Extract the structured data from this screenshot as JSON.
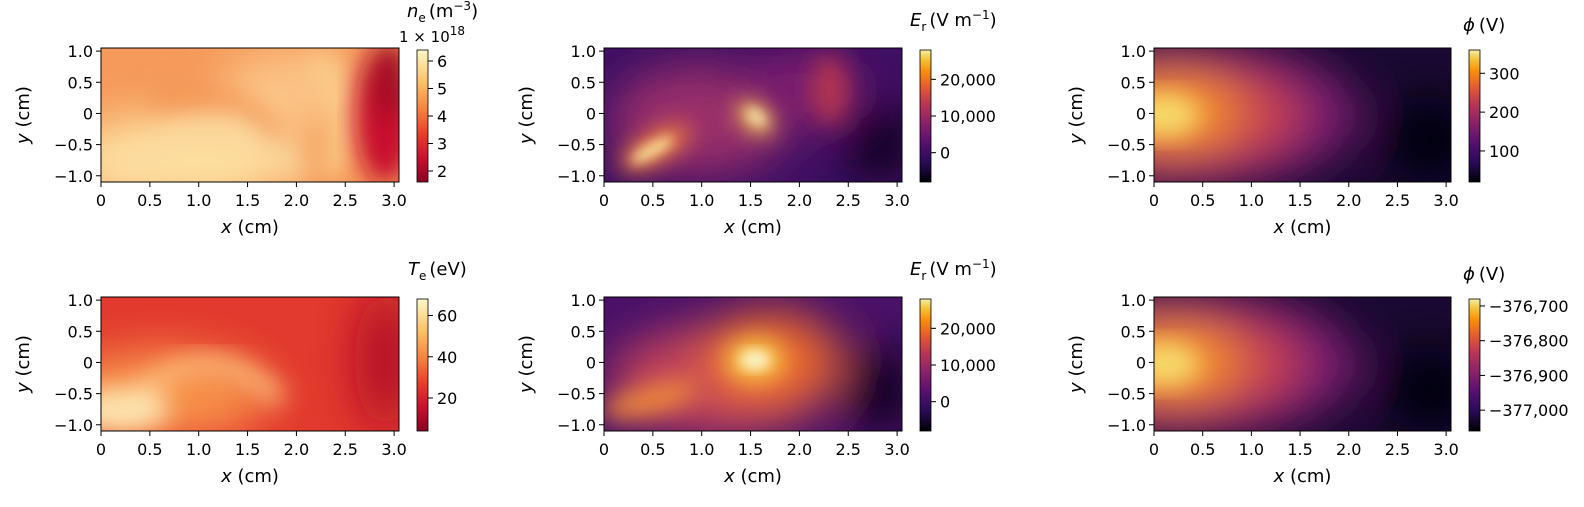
{
  "chart_data": [
    {
      "type": "heatmap",
      "id": "ne",
      "colormap": "YlOrRd",
      "colorbar": {
        "symbol": "n",
        "subscript": "e",
        "unit": "(m",
        "unit_sup": "−3",
        "unit_close": ")",
        "range": [
          1.6,
          6.4
        ],
        "ticks": [
          "2",
          "3",
          "4",
          "5",
          "6"
        ],
        "offset_label": "1 × 10",
        "offset_sup": "18"
      },
      "xlabel_var": "x",
      "xlabel_unit": " (cm)",
      "ylabel_var": "y",
      "ylabel_unit": " (cm)",
      "xlim": [
        0,
        3.05
      ],
      "ylim": [
        -1.1,
        1.05
      ],
      "xticks": [
        "0",
        "0.5",
        "1.0",
        "1.5",
        "2.0",
        "2.5",
        "3.0"
      ],
      "yticks": [
        "1.0",
        "0.5",
        "0",
        "−0.5",
        "−1.0"
      ]
    },
    {
      "type": "heatmap",
      "id": "Er1",
      "colormap": "inferno",
      "colorbar": {
        "symbol": "E",
        "subscript": "r",
        "unit": "(V m",
        "unit_sup": "−1",
        "unit_close": ")",
        "range": [
          -8000,
          28000
        ],
        "ticks": [
          "20,000",
          "10,000",
          "0"
        ]
      },
      "xlabel_var": "x",
      "xlabel_unit": " (cm)",
      "ylabel_var": "y",
      "ylabel_unit": " (cm)",
      "xlim": [
        0,
        3.05
      ],
      "ylim": [
        -1.1,
        1.05
      ],
      "xticks": [
        "0",
        "0.5",
        "1.0",
        "1.5",
        "2.0",
        "2.5",
        "3.0"
      ],
      "yticks": [
        "1.0",
        "0.5",
        "0",
        "−0.5",
        "−1.0"
      ]
    },
    {
      "type": "heatmap",
      "id": "phi1",
      "colormap": "inferno",
      "colorbar": {
        "symbol": "ϕ",
        "subscript": "",
        "unit": "(V)",
        "unit_sup": "",
        "unit_close": "",
        "range": [
          20,
          360
        ],
        "ticks": [
          "300",
          "200",
          "100"
        ]
      },
      "xlabel_var": "x",
      "xlabel_unit": " (cm)",
      "ylabel_var": "y",
      "ylabel_unit": " (cm)",
      "xlim": [
        0,
        3.05
      ],
      "ylim": [
        -1.1,
        1.05
      ],
      "xticks": [
        "0",
        "0.5",
        "1.0",
        "1.5",
        "2.0",
        "2.5",
        "3.0"
      ],
      "yticks": [
        "1.0",
        "0.5",
        "0",
        "−0.5",
        "−1.0"
      ]
    },
    {
      "type": "heatmap",
      "id": "Te",
      "colormap": "YlOrRd",
      "colorbar": {
        "symbol": "T",
        "subscript": "e",
        "unit": "(eV)",
        "unit_sup": "",
        "unit_close": "",
        "range": [
          4,
          68
        ],
        "ticks": [
          "60",
          "40",
          "20"
        ]
      },
      "xlabel_var": "x",
      "xlabel_unit": " (cm)",
      "ylabel_var": "y",
      "ylabel_unit": " (cm)",
      "xlim": [
        0,
        3.05
      ],
      "ylim": [
        -1.1,
        1.05
      ],
      "xticks": [
        "0",
        "0.5",
        "1.0",
        "1.5",
        "2.0",
        "2.5",
        "3.0"
      ],
      "yticks": [
        "1.0",
        "0.5",
        "0",
        "−0.5",
        "−1.0"
      ]
    },
    {
      "type": "heatmap",
      "id": "Er2",
      "colormap": "inferno",
      "colorbar": {
        "symbol": "E",
        "subscript": "r",
        "unit": "(V m",
        "unit_sup": "−1",
        "unit_close": ")",
        "range": [
          -8000,
          28000
        ],
        "ticks": [
          "20,000",
          "10,000",
          "0"
        ]
      },
      "xlabel_var": "x",
      "xlabel_unit": " (cm)",
      "ylabel_var": "y",
      "ylabel_unit": " (cm)",
      "xlim": [
        0,
        3.05
      ],
      "ylim": [
        -1.1,
        1.05
      ],
      "xticks": [
        "0",
        "0.5",
        "1.0",
        "1.5",
        "2.0",
        "2.5",
        "3.0"
      ],
      "yticks": [
        "1.0",
        "0.5",
        "0",
        "−0.5",
        "−1.0"
      ]
    },
    {
      "type": "heatmap",
      "id": "phi2",
      "colormap": "inferno",
      "colorbar": {
        "symbol": "ϕ",
        "subscript": "",
        "unit": "(V)",
        "unit_sup": "",
        "unit_close": "",
        "range": [
          -377060,
          -376680
        ],
        "ticks": [
          "−376,700",
          "−376,800",
          "−376,900",
          "−377,000"
        ]
      },
      "xlabel_var": "x",
      "xlabel_unit": " (cm)",
      "ylabel_var": "y",
      "ylabel_unit": " (cm)",
      "xlim": [
        0,
        3.05
      ],
      "ylim": [
        -1.1,
        1.05
      ],
      "xticks": [
        "0",
        "0.5",
        "1.0",
        "1.5",
        "2.0",
        "2.5",
        "3.0"
      ],
      "yticks": [
        "1.0",
        "0.5",
        "0",
        "−0.5",
        "−1.0"
      ]
    }
  ]
}
